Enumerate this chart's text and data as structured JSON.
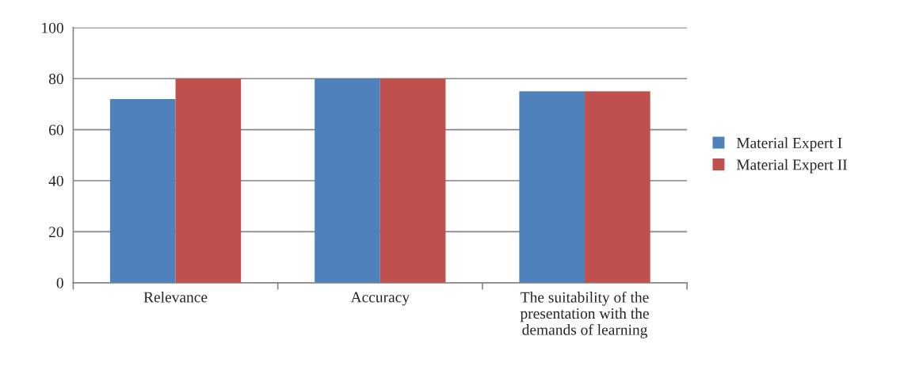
{
  "chart_data": {
    "type": "bar",
    "categories": [
      "Relevance",
      "Accuracy",
      "The suitability of the\npresentation with the\ndemands of learning"
    ],
    "series": [
      {
        "name": "Material Expert I",
        "color": "#4f81bd",
        "values": [
          72,
          80,
          75
        ]
      },
      {
        "name": "Material Expert II",
        "color": "#c0504d",
        "values": [
          80,
          80,
          75
        ]
      }
    ],
    "ylim": [
      0,
      100
    ],
    "yticks": [
      0,
      20,
      40,
      60,
      80,
      100
    ],
    "grid": "y",
    "legend": "right"
  }
}
